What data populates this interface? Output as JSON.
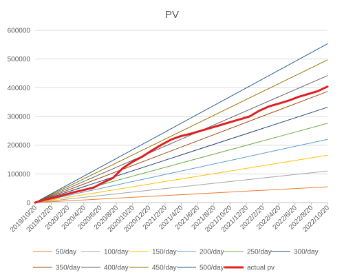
{
  "chart_data": {
    "type": "line",
    "title": "PV",
    "xlabel": "",
    "ylabel": "",
    "ylim": [
      0,
      600000
    ],
    "y_ticks": [
      0,
      100000,
      200000,
      300000,
      400000,
      500000,
      600000
    ],
    "y_tick_labels": [
      "0",
      "100000",
      "200000",
      "300000",
      "400000",
      "500000",
      "600000"
    ],
    "x_tick_labels": [
      "2019/10/20",
      "2019/12/20",
      "2020/2/20",
      "2020/4/20",
      "2020/6/20",
      "2020/8/20",
      "2020/10/20",
      "2020/12/20",
      "2021/2/20",
      "2021/4/20",
      "2021/6/20",
      "2021/8/20",
      "2021/10/20",
      "2021/12/20",
      "2022/2/20",
      "2022/4/20",
      "2022/6/20",
      "2022/8/20",
      "2022/10/20"
    ],
    "grid": "horizontal",
    "legend_position": "bottom",
    "series": [
      {
        "name": "50/day",
        "color": "#ed7d31",
        "values": [
          0,
          55000
        ]
      },
      {
        "name": "100/day",
        "color": "#a5a5a5",
        "values": [
          0,
          110000
        ]
      },
      {
        "name": "150/day",
        "color": "#ffc000",
        "values": [
          0,
          165000
        ]
      },
      {
        "name": "200/day",
        "color": "#5b9bd5",
        "values": [
          0,
          220000
        ]
      },
      {
        "name": "250/day",
        "color": "#70ad47",
        "values": [
          0,
          276000
        ]
      },
      {
        "name": "300/day",
        "color": "#264478",
        "values": [
          0,
          332000
        ]
      },
      {
        "name": "350/day",
        "color": "#9e480e",
        "values": [
          0,
          387000
        ]
      },
      {
        "name": "400/day",
        "color": "#636363",
        "values": [
          0,
          442000
        ]
      },
      {
        "name": "450/day",
        "color": "#997300",
        "values": [
          0,
          497000
        ]
      },
      {
        "name": "500/day",
        "color": "#255e91",
        "values": [
          0,
          553000
        ]
      },
      {
        "name": "actual pv",
        "color": "#e02020",
        "values": [
          0,
          10000,
          17000,
          27000,
          36000,
          44000,
          52000,
          70000,
          86000,
          120000,
          142000,
          160000,
          182000,
          202000,
          220000,
          232000,
          240000,
          250000,
          260000,
          270000,
          280000,
          290000,
          300000,
          320000,
          335000,
          345000,
          355000,
          368000,
          378000,
          388000,
          404000
        ]
      }
    ]
  }
}
